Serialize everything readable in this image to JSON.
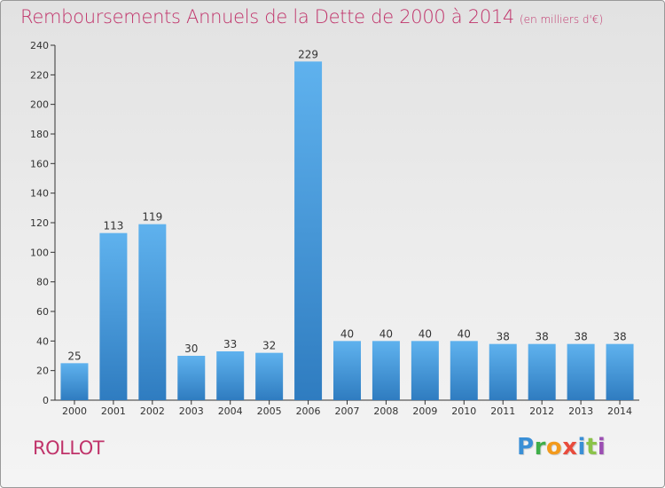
{
  "header": {
    "title": "Remboursements Annuels de la Dette de 2000 à 2014",
    "unit": "(en milliers d'€)"
  },
  "commune": "ROLLOT",
  "logo": {
    "text": "Proxiti",
    "colors": [
      "#3a8fd6",
      "#3fae49",
      "#f29a1d",
      "#e84c3d",
      "#3a8fd6",
      "#8bc34a",
      "#9c4fb3"
    ]
  },
  "colors": {
    "title": "#c0336a",
    "bar_top": "#5fb2ee",
    "bar_bottom": "#2f7cc0",
    "axis": "#333333"
  },
  "chart_data": {
    "type": "bar",
    "categories": [
      "2000",
      "2001",
      "2002",
      "2003",
      "2004",
      "2005",
      "2006",
      "2007",
      "2008",
      "2009",
      "2010",
      "2011",
      "2012",
      "2013",
      "2014"
    ],
    "values": [
      25,
      113,
      119,
      30,
      33,
      32,
      229,
      40,
      40,
      40,
      40,
      38,
      38,
      38,
      38
    ],
    "ylim": [
      0,
      240
    ],
    "yticks": [
      0,
      20,
      40,
      60,
      80,
      100,
      120,
      140,
      160,
      180,
      200,
      220,
      240
    ],
    "grid": false,
    "legend": "none"
  }
}
